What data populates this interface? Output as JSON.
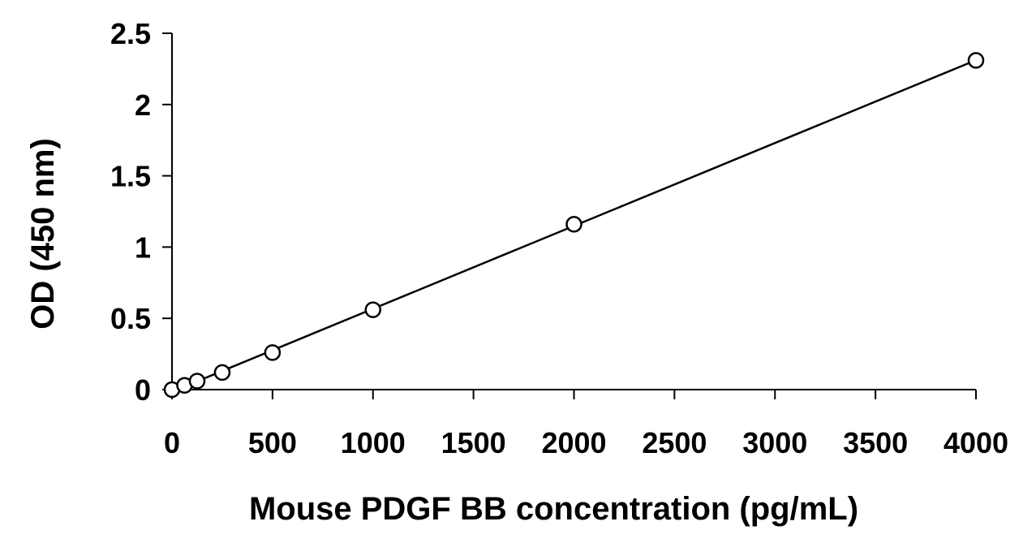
{
  "chart_data": {
    "type": "scatter",
    "title": "",
    "xlabel": "Mouse PDGF BB concentration (pg/mL)",
    "ylabel": "OD (450 nm)",
    "xlim": [
      0,
      4000
    ],
    "ylim": [
      0,
      2.5
    ],
    "xticks": [
      0,
      500,
      1000,
      1500,
      2000,
      2500,
      3000,
      3500,
      4000
    ],
    "yticks": [
      0,
      0.5,
      1,
      1.5,
      2,
      2.5
    ],
    "xtick_labels": [
      "0",
      "500",
      "1000",
      "1500",
      "2000",
      "2500",
      "3000",
      "3500",
      "4000"
    ],
    "ytick_labels": [
      "0",
      "0.5",
      "1",
      "1.5",
      "2",
      "2.5"
    ],
    "grid": false,
    "legend": "none",
    "marker": "open-circle",
    "trendline": "linear",
    "series": [
      {
        "x": [
          0,
          62.5,
          125,
          250,
          500,
          1000,
          2000,
          4000
        ],
        "y": [
          0.0,
          0.03,
          0.06,
          0.12,
          0.26,
          0.56,
          1.16,
          2.31
        ]
      }
    ],
    "colors": {
      "line": "#000000",
      "marker_fill": "#ffffff"
    }
  }
}
